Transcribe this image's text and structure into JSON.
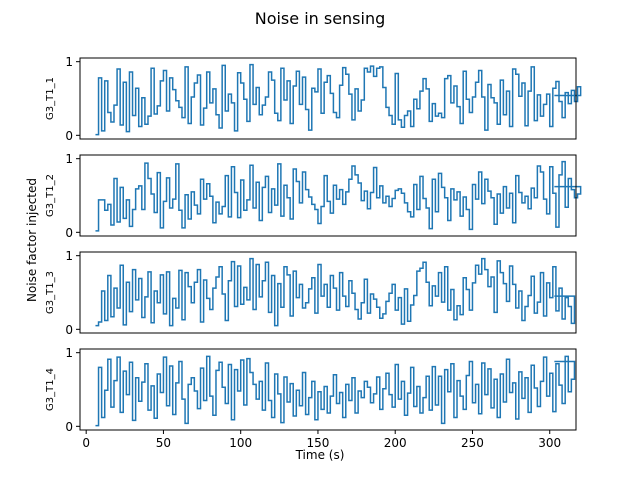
{
  "chart_data": {
    "type": "line",
    "title": "Noise in sensing",
    "xlabel": "Time (s)",
    "ylabel": "Noise factor injected",
    "xlim": [
      -4,
      317
    ],
    "ylim": [
      -0.05,
      1.05
    ],
    "xticks": [
      0,
      50,
      100,
      150,
      200,
      250,
      300
    ],
    "yticks": [
      0,
      1
    ],
    "step": true,
    "grid": false,
    "x_start": 6,
    "x_end": 303,
    "x_step": 2,
    "series": [
      {
        "name": "G3_T1_1",
        "values": [
          0.01,
          0.78,
          0.06,
          0.74,
          0.31,
          0.18,
          0.41,
          0.9,
          0.14,
          0.72,
          0.05,
          0.86,
          0.27,
          0.64,
          0.12,
          0.51,
          0.15,
          0.26,
          0.91,
          0.29,
          0.4,
          0.74,
          0.88,
          0.33,
          0.78,
          0.62,
          0.47,
          0.38,
          0.24,
          0.93,
          0.16,
          0.52,
          0.71,
          0.82,
          0.14,
          0.37,
          0.86,
          0.44,
          0.63,
          0.28,
          0.1,
          0.95,
          0.33,
          0.56,
          0.44,
          0.06,
          0.85,
          0.71,
          0.49,
          0.19,
          0.96,
          0.42,
          0.65,
          0.28,
          0.41,
          0.52,
          0.86,
          0.75,
          0.3,
          0.2,
          0.91,
          0.48,
          0.74,
          0.16,
          0.67,
          0.87,
          0.42,
          0.79,
          0.35,
          0.07,
          0.64,
          0.59,
          0.9,
          0.3,
          0.72,
          0.81,
          0.57,
          0.31,
          0.24,
          0.68,
          0.92,
          0.83,
          0.56,
          0.21,
          0.63,
          0.33,
          0.48,
          0.91,
          0.86,
          0.94,
          0.8,
          0.91,
          0.93,
          0.65,
          0.38,
          0.27,
          0.15,
          0.84,
          0.21,
          0.11,
          0.27,
          0.33,
          0.12,
          0.49,
          0.36,
          0.6,
          0.77,
          0.63,
          0.19,
          0.43,
          0.26,
          0.3,
          0.24,
          0.77,
          0.81,
          0.44,
          0.67,
          0.39,
          0.16,
          0.87,
          0.49,
          0.31,
          0.52,
          0.72,
          0.88,
          0.52,
          0.07,
          0.69,
          0.51,
          0.44,
          0.15,
          0.75,
          0.28,
          0.6,
          0.12,
          0.9,
          0.83,
          0.53,
          0.71,
          0.13,
          0.6,
          0.93,
          0.2,
          0.55,
          0.26,
          0.42,
          0.56,
          0.12,
          0.64,
          0.73,
          0.46,
          0.24,
          0.58,
          0.43,
          0.61,
          0.46,
          0.66,
          0.54
        ]
      },
      {
        "name": "G3_T1_2",
        "values": [
          0.02,
          0.44,
          0.44,
          0.3,
          0.38,
          0.1,
          0.73,
          0.14,
          0.61,
          0.19,
          0.44,
          0.08,
          0.31,
          0.59,
          0.63,
          0.31,
          0.94,
          0.73,
          0.52,
          0.27,
          0.81,
          0.06,
          0.42,
          0.74,
          0.33,
          0.45,
          0.93,
          0.3,
          0.06,
          0.51,
          0.18,
          0.55,
          0.37,
          0.25,
          0.72,
          0.45,
          0.66,
          0.49,
          0.13,
          0.41,
          0.25,
          0.35,
          0.77,
          0.21,
          0.89,
          0.54,
          0.2,
          0.71,
          0.3,
          0.44,
          0.91,
          0.33,
          0.68,
          0.16,
          0.61,
          0.76,
          0.27,
          0.59,
          0.37,
          0.93,
          0.22,
          0.64,
          0.47,
          0.18,
          0.86,
          0.69,
          0.4,
          0.82,
          0.58,
          0.48,
          0.38,
          0.31,
          0.12,
          0.35,
          0.77,
          0.42,
          0.26,
          0.64,
          0.45,
          0.58,
          0.38,
          0.55,
          0.72,
          0.9,
          0.78,
          0.67,
          0.43,
          0.56,
          0.32,
          0.54,
          0.88,
          0.47,
          0.63,
          0.4,
          0.49,
          0.35,
          0.46,
          0.57,
          0.59,
          0.53,
          0.4,
          0.28,
          0.21,
          0.65,
          0.31,
          0.76,
          0.46,
          0.33,
          0.05,
          0.72,
          0.28,
          0.8,
          0.61,
          0.47,
          0.16,
          0.59,
          0.44,
          0.55,
          0.22,
          0.48,
          0.31,
          0.04,
          0.65,
          0.45,
          0.82,
          0.39,
          0.72,
          0.56,
          0.47,
          0.11,
          0.52,
          0.26,
          0.62,
          0.33,
          0.53,
          0.13,
          0.77,
          0.54,
          0.4,
          0.49,
          0.32,
          0.6,
          0.47,
          0.9,
          0.82,
          0.45,
          0.25,
          0.89,
          0.53,
          0.07,
          0.78,
          0.96,
          0.34,
          0.73,
          0.58,
          0.47,
          0.52,
          0.62
        ]
      },
      {
        "name": "G3_T1_3",
        "values": [
          0.05,
          0.1,
          0.52,
          0.12,
          0.73,
          0.17,
          0.56,
          0.29,
          0.87,
          0.06,
          0.64,
          0.24,
          0.81,
          0.4,
          0.69,
          0.16,
          0.44,
          0.78,
          0.09,
          0.52,
          0.36,
          0.74,
          0.21,
          0.78,
          0.05,
          0.42,
          0.29,
          0.8,
          0.13,
          0.77,
          0.58,
          0.36,
          0.64,
          0.81,
          0.1,
          0.67,
          0.42,
          0.27,
          0.56,
          0.71,
          0.85,
          0.48,
          0.12,
          0.66,
          0.92,
          0.31,
          0.86,
          0.34,
          0.57,
          0.4,
          0.96,
          0.27,
          0.88,
          0.44,
          0.66,
          0.91,
          0.23,
          0.73,
          0.05,
          0.62,
          0.3,
          0.85,
          0.74,
          0.18,
          0.79,
          0.43,
          0.61,
          0.29,
          0.36,
          0.55,
          0.7,
          0.22,
          0.88,
          0.45,
          0.61,
          0.3,
          0.73,
          0.56,
          0.26,
          0.77,
          0.45,
          0.31,
          0.66,
          0.49,
          0.27,
          0.14,
          0.36,
          0.68,
          0.22,
          0.48,
          0.41,
          0.3,
          0.15,
          0.21,
          0.38,
          0.49,
          0.61,
          0.26,
          0.43,
          0.07,
          0.55,
          0.11,
          0.33,
          0.46,
          0.79,
          0.83,
          0.91,
          0.64,
          0.32,
          0.59,
          0.45,
          0.77,
          0.37,
          0.85,
          0.26,
          0.54,
          0.13,
          0.32,
          0.2,
          0.7,
          0.54,
          0.26,
          0.63,
          0.87,
          0.75,
          0.96,
          0.81,
          0.58,
          0.71,
          0.23,
          0.93,
          0.77,
          0.62,
          0.38,
          0.86,
          0.61,
          0.29,
          0.52,
          0.12,
          0.31,
          0.46,
          0.72,
          0.22,
          0.37,
          0.77,
          0.18,
          0.63,
          0.43,
          0.85,
          0.25,
          0.56,
          0.14,
          0.43,
          0.31,
          0.08,
          0.45
        ]
      },
      {
        "name": "G3_T1_4",
        "values": [
          0.01,
          0.8,
          0.12,
          0.49,
          0.91,
          0.26,
          0.62,
          0.94,
          0.19,
          0.75,
          0.43,
          0.87,
          0.08,
          0.66,
          0.34,
          0.6,
          0.85,
          0.22,
          0.55,
          0.11,
          0.71,
          0.46,
          0.94,
          0.28,
          0.82,
          0.16,
          0.59,
          0.88,
          0.37,
          0.04,
          0.57,
          0.66,
          0.48,
          0.24,
          0.79,
          0.35,
          0.95,
          0.41,
          0.15,
          0.76,
          0.87,
          0.53,
          0.31,
          0.84,
          0.09,
          0.77,
          0.48,
          0.9,
          0.29,
          0.92,
          0.73,
          0.57,
          0.37,
          0.61,
          0.22,
          0.86,
          0.35,
          0.12,
          0.71,
          0.44,
          0.05,
          0.67,
          0.33,
          0.58,
          0.14,
          0.49,
          0.28,
          0.73,
          0.16,
          0.39,
          0.61,
          0.09,
          0.47,
          0.23,
          0.54,
          0.18,
          0.41,
          0.7,
          0.31,
          0.46,
          0.12,
          0.57,
          0.35,
          0.66,
          0.18,
          0.48,
          0.39,
          0.61,
          0.53,
          0.32,
          0.44,
          0.67,
          0.23,
          0.51,
          0.72,
          0.43,
          0.26,
          0.84,
          0.37,
          0.61,
          0.15,
          0.45,
          0.8,
          0.27,
          0.54,
          0.18,
          0.39,
          0.68,
          0.22,
          0.81,
          0.29,
          0.68,
          0.04,
          0.77,
          0.47,
          0.85,
          0.12,
          0.62,
          0.41,
          0.23,
          0.69,
          0.88,
          0.32,
          0.57,
          0.17,
          0.86,
          0.43,
          0.78,
          0.25,
          0.64,
          0.12,
          0.71,
          0.33,
          0.91,
          0.46,
          0.59,
          0.1,
          0.74,
          0.38,
          0.66,
          0.19,
          0.83,
          0.52,
          0.27,
          0.61,
          0.94,
          0.41,
          0.72,
          0.2,
          0.85,
          0.56,
          0.31,
          0.95,
          0.47,
          0.64,
          0.88
        ]
      }
    ]
  }
}
